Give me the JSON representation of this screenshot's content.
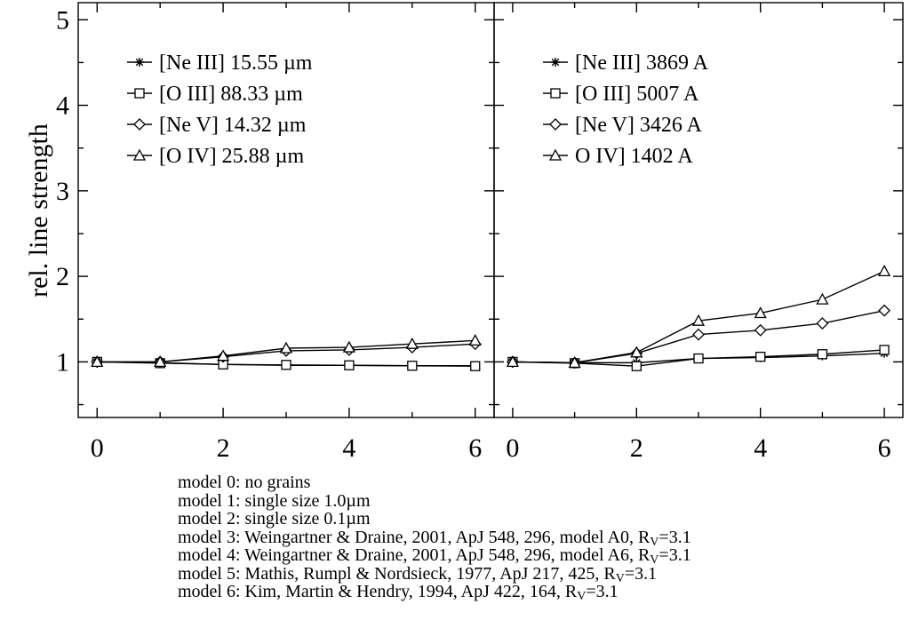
{
  "chart_data": [
    {
      "type": "line",
      "panel": "left",
      "ylabel": "rel. line strength",
      "xlim": [
        -0.3,
        6.3
      ],
      "ylim": [
        0.35,
        5.2
      ],
      "xticks": [
        0,
        2,
        4,
        6
      ],
      "yticks": [
        1,
        2,
        3,
        4,
        5
      ],
      "x": [
        0,
        1,
        2,
        3,
        4,
        5,
        6
      ],
      "legend_position": "top-left",
      "series": [
        {
          "name": "[Ne III] 15.55 µm",
          "marker": "asterisk",
          "values": [
            1.0,
            0.99,
            0.97,
            0.96,
            0.96,
            0.955,
            0.955
          ]
        },
        {
          "name": "[O III] 88.33 µm",
          "marker": "square",
          "values": [
            1.0,
            0.985,
            0.97,
            0.965,
            0.96,
            0.955,
            0.95
          ]
        },
        {
          "name": "[Ne V] 14.32 µm",
          "marker": "diamond",
          "values": [
            1.0,
            1.0,
            1.06,
            1.13,
            1.14,
            1.17,
            1.21
          ]
        },
        {
          "name": "[O IV] 25.88 µm",
          "marker": "triangle",
          "values": [
            1.0,
            1.0,
            1.07,
            1.16,
            1.17,
            1.21,
            1.25
          ]
        }
      ]
    },
    {
      "type": "line",
      "panel": "right",
      "xlim": [
        -0.3,
        6.3
      ],
      "ylim": [
        0.35,
        5.2
      ],
      "xticks": [
        0,
        2,
        4,
        6
      ],
      "x": [
        0,
        1,
        2,
        3,
        4,
        5,
        6
      ],
      "legend_position": "top-left",
      "series": [
        {
          "name": "[Ne III] 3869 A",
          "marker": "asterisk",
          "values": [
            1.0,
            0.99,
            0.99,
            1.04,
            1.05,
            1.07,
            1.1
          ]
        },
        {
          "name": "[O III] 5007 A",
          "marker": "square",
          "values": [
            1.0,
            0.985,
            0.95,
            1.04,
            1.06,
            1.09,
            1.14
          ]
        },
        {
          "name": "[Ne V] 3426 A",
          "marker": "diamond",
          "values": [
            1.0,
            0.99,
            1.1,
            1.32,
            1.37,
            1.45,
            1.6
          ]
        },
        {
          "name": "O IV] 1402 A",
          "marker": "triangle",
          "values": [
            1.0,
            0.99,
            1.11,
            1.48,
            1.57,
            1.73,
            2.06
          ]
        }
      ]
    }
  ],
  "notes": [
    {
      "text": "model 0: no grains"
    },
    {
      "text": "model 1: single size 1.0µm"
    },
    {
      "text": "model 2: single size 0.1µm"
    },
    {
      "text": "model 3: Weingartner & Draine, 2001, ApJ 548, 296, model A0, R",
      "sub": "V",
      "tail": "=3.1"
    },
    {
      "text": "model 4: Weingartner & Draine, 2001, ApJ 548, 296, model A6, R",
      "sub": "V",
      "tail": "=3.1"
    },
    {
      "text": "model 5: Mathis, Rumpl & Nordsieck, 1977, ApJ 217, 425, R",
      "sub": "V",
      "tail": "=3.1"
    },
    {
      "text": "model 6: Kim, Martin & Hendry, 1994, ApJ 422, 164, R",
      "sub": "V",
      "tail": "=3.1"
    }
  ]
}
